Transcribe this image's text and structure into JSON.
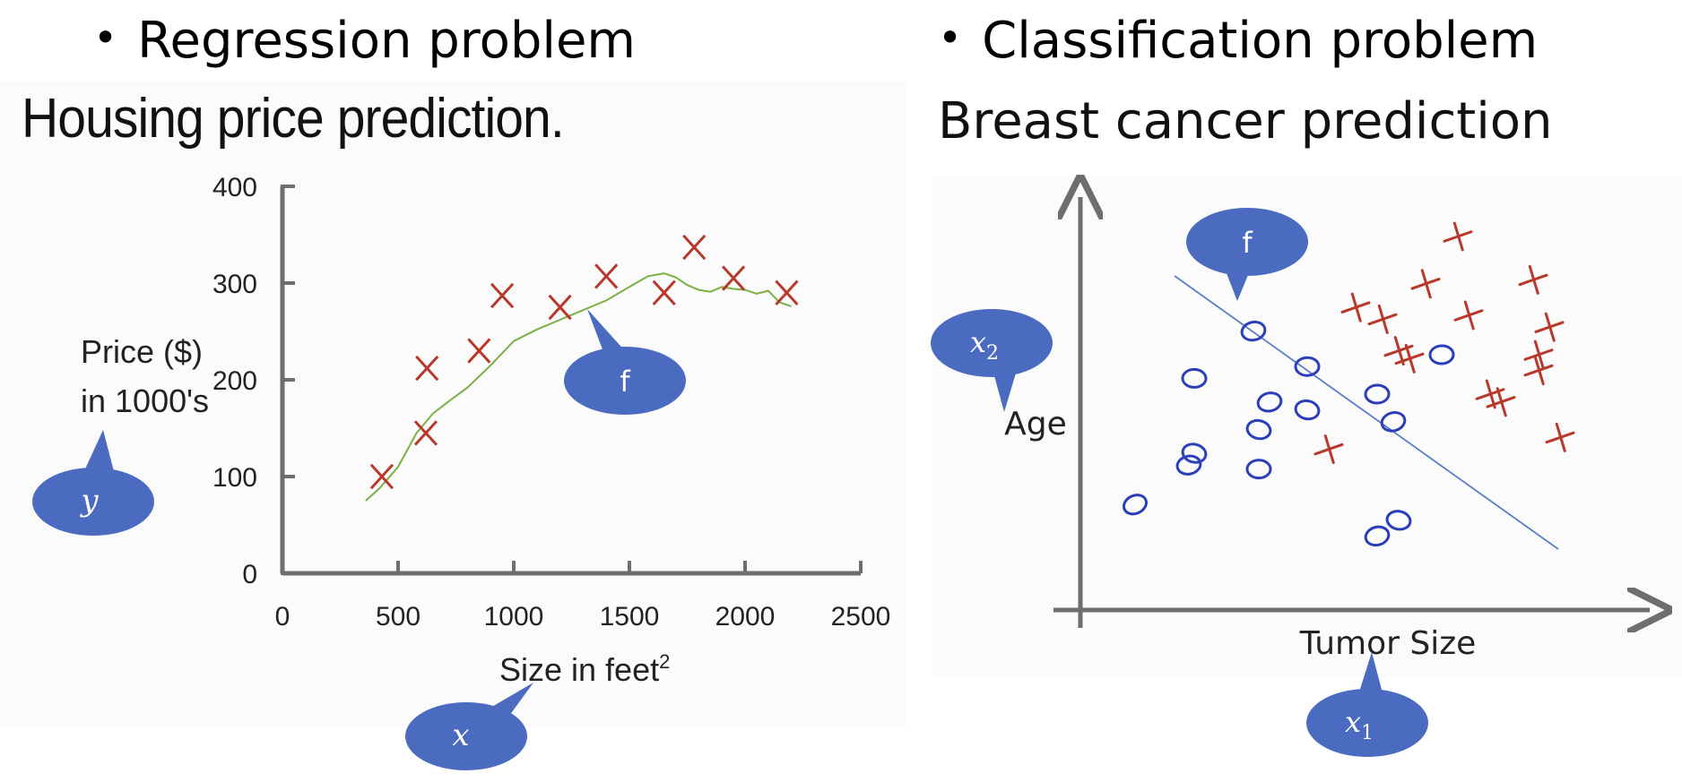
{
  "left": {
    "bullet": "Regression problem",
    "subtitle": "Housing price prediction."
  },
  "right": {
    "bullet": "Classification problem",
    "subtitle": "Breast cancer prediction"
  },
  "colors": {
    "callout": "#4a6bbf",
    "cross": "#b8392b",
    "circle": "#2b3fb8",
    "curve": "#7bb043",
    "axis": "#6e6e6e",
    "boundary": "#5b7fc7"
  },
  "chart_data": [
    {
      "type": "scatter",
      "title": "",
      "xlabel": "Size in feet",
      "xlabel_superscript": "2",
      "ylabel_line1": "Price ($)",
      "ylabel_line2": "in 1000's",
      "xlim": [
        0,
        2500
      ],
      "ylim": [
        0,
        400
      ],
      "x_ticks": [
        0,
        500,
        1000,
        1500,
        2000,
        2500
      ],
      "y_ticks": [
        0,
        100,
        200,
        300,
        400
      ],
      "grid": false,
      "series": [
        {
          "marker": "x",
          "x": [
            430,
            620,
            625,
            850,
            950,
            1200,
            1400,
            1650,
            1780,
            1950,
            2180
          ],
          "y": [
            100,
            145,
            212,
            230,
            287,
            275,
            307,
            290,
            337,
            305,
            290
          ]
        }
      ],
      "fit_curve": {
        "x": [
          360,
          420,
          500,
          580,
          650,
          720,
          800,
          900,
          1000,
          1100,
          1200,
          1300,
          1400,
          1500,
          1580,
          1650,
          1700,
          1750,
          1800,
          1850,
          1900,
          1950,
          2000,
          2050,
          2100,
          2150,
          2200
        ],
        "y": [
          75,
          88,
          110,
          145,
          165,
          178,
          192,
          215,
          240,
          252,
          262,
          272,
          282,
          296,
          307,
          310,
          306,
          298,
          293,
          291,
          296,
          294,
          293,
          289,
          292,
          280,
          276
        ]
      },
      "callouts": {
        "x": "x",
        "y": "y",
        "f": "f"
      }
    },
    {
      "type": "scatter",
      "title": "",
      "xlabel": "Tumor Size",
      "ylabel": "Age",
      "grid": false,
      "series": [
        {
          "marker": "o",
          "x": [
            0.06,
            0.16,
            0.17,
            0.17,
            0.28,
            0.29,
            0.29,
            0.31,
            0.38,
            0.38,
            0.51,
            0.51,
            0.55,
            0.54,
            0.63
          ],
          "y": [
            0.22,
            0.32,
            0.54,
            0.35,
            0.66,
            0.31,
            0.41,
            0.48,
            0.57,
            0.46,
            0.14,
            0.5,
            0.18,
            0.43,
            0.6
          ]
        },
        {
          "marker": "x",
          "x": [
            0.42,
            0.47,
            0.52,
            0.55,
            0.57,
            0.6,
            0.66,
            0.68,
            0.72,
            0.74,
            0.8,
            0.81,
            0.83,
            0.85,
            0.81
          ],
          "y": [
            0.36,
            0.72,
            0.69,
            0.61,
            0.59,
            0.78,
            0.9,
            0.7,
            0.5,
            0.48,
            0.79,
            0.6,
            0.67,
            0.39,
            0.56
          ]
        }
      ],
      "decision_boundary": "linear",
      "callouts": {
        "x1": "x",
        "x2": "x",
        "f": "f"
      }
    }
  ]
}
